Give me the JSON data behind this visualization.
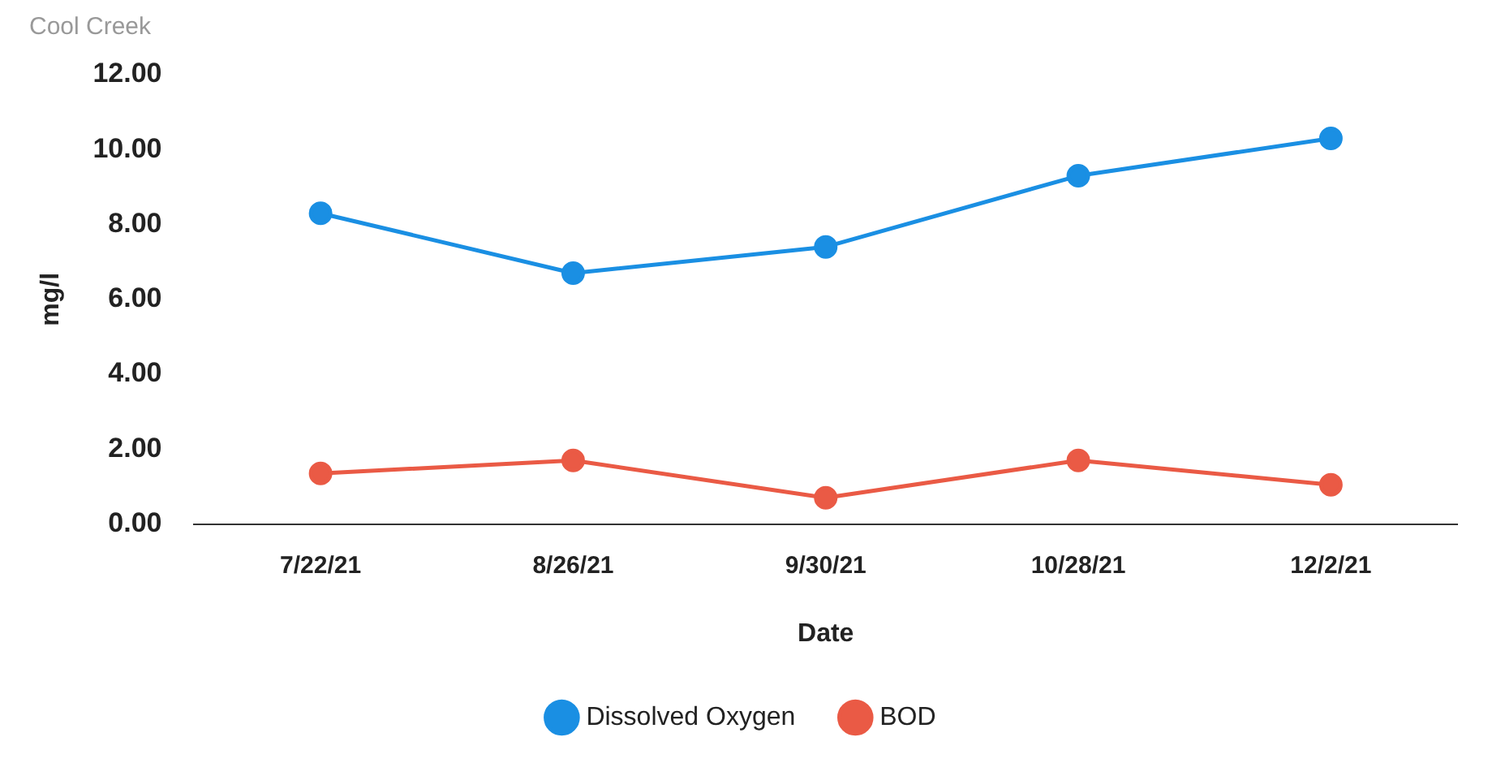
{
  "chart_data": {
    "type": "line",
    "title": "Cool Creek",
    "xlabel": "Date",
    "ylabel": "mg/l",
    "categories": [
      "7/22/21",
      "8/26/21",
      "9/30/21",
      "10/28/21",
      "12/2/21"
    ],
    "series": [
      {
        "name": "Dissolved Oxygen",
        "color": "#1a8fe3",
        "values": [
          8.3,
          6.7,
          7.4,
          9.3,
          10.3
        ]
      },
      {
        "name": "BOD",
        "color": "#ea5a45",
        "values": [
          1.35,
          1.7,
          0.7,
          1.7,
          1.05
        ]
      }
    ],
    "ylim": [
      0,
      12
    ],
    "yticks": [
      {
        "value": 0,
        "label": "0.00"
      },
      {
        "value": 2,
        "label": "2.00"
      },
      {
        "value": 4,
        "label": "4.00"
      },
      {
        "value": 6,
        "label": "6.00"
      },
      {
        "value": 8,
        "label": "8.00"
      },
      {
        "value": 10,
        "label": "10.00"
      },
      {
        "value": 12,
        "label": "12.00"
      }
    ],
    "grid": false,
    "legend": "bottom",
    "marker": "circle",
    "line_style": "solid"
  }
}
